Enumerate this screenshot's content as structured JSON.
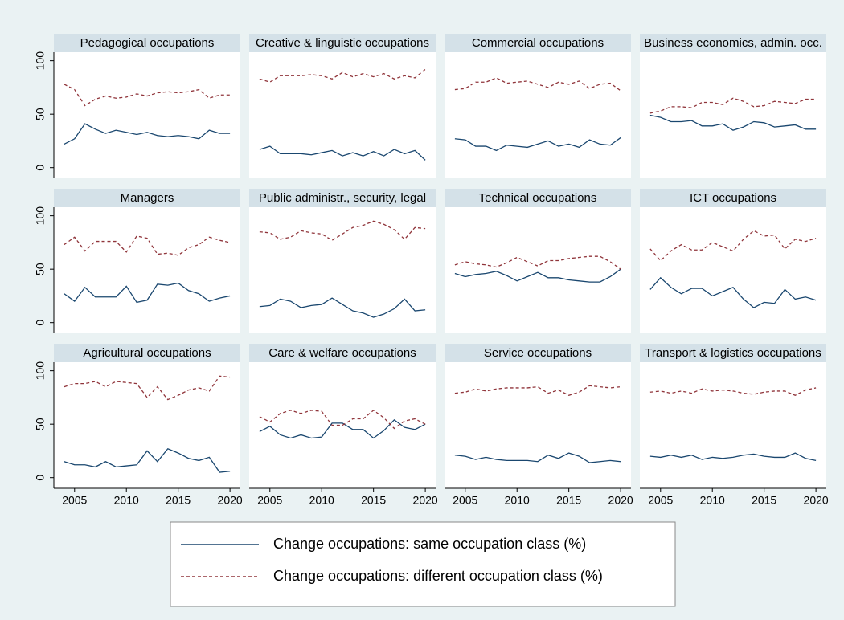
{
  "chart_data": {
    "type": "line",
    "x": [
      2004,
      2005,
      2006,
      2007,
      2008,
      2009,
      2010,
      2011,
      2012,
      2013,
      2014,
      2015,
      2016,
      2017,
      2018,
      2019,
      2020
    ],
    "xlim": [
      2003,
      2021
    ],
    "xticks": [
      2005,
      2010,
      2015,
      2020
    ],
    "ylim": [
      -10,
      108
    ],
    "yticks": [
      0,
      50,
      100
    ],
    "series": [
      {
        "name": "Change occupations: same occupation class (%)",
        "color": "#1a476f",
        "dash": false
      },
      {
        "name": "Change occupations: different occupation class (%)",
        "color": "#90353b",
        "dash": true
      }
    ],
    "panels": [
      {
        "title": "Pedagogical occupations",
        "values": [
          [
            22,
            27,
            41,
            36,
            32,
            35,
            33,
            31,
            33,
            30,
            29,
            30,
            29,
            27,
            35,
            32,
            32
          ],
          [
            78,
            73,
            58,
            64,
            67,
            65,
            66,
            69,
            67,
            70,
            71,
            70,
            71,
            73,
            65,
            68,
            68
          ]
        ]
      },
      {
        "title": "Creative & linguistic occupations",
        "values": [
          [
            17,
            20,
            13,
            13,
            13,
            12,
            14,
            16,
            11,
            14,
            11,
            15,
            11,
            17,
            13,
            16,
            7
          ],
          [
            83,
            80,
            86,
            86,
            86,
            87,
            86,
            83,
            89,
            85,
            88,
            85,
            88,
            83,
            86,
            84,
            92
          ]
        ]
      },
      {
        "title": "Commercial occupations",
        "values": [
          [
            27,
            26,
            20,
            20,
            16,
            21,
            20,
            19,
            22,
            25,
            20,
            22,
            19,
            26,
            22,
            21,
            28
          ],
          [
            73,
            74,
            80,
            80,
            84,
            79,
            80,
            81,
            78,
            75,
            80,
            78,
            81,
            74,
            78,
            79,
            72
          ]
        ]
      },
      {
        "title": "Business economics, admin. occ.",
        "values": [
          [
            49,
            47,
            43,
            43,
            44,
            39,
            39,
            41,
            35,
            38,
            43,
            42,
            38,
            39,
            40,
            36,
            36
          ],
          [
            51,
            53,
            57,
            57,
            56,
            61,
            61,
            59,
            65,
            62,
            57,
            58,
            62,
            61,
            60,
            64,
            64
          ]
        ]
      },
      {
        "title": "Managers",
        "values": [
          [
            27,
            20,
            33,
            24,
            24,
            24,
            34,
            19,
            21,
            36,
            35,
            37,
            30,
            27,
            20,
            23,
            25
          ],
          [
            73,
            80,
            67,
            76,
            76,
            76,
            66,
            81,
            79,
            64,
            65,
            63,
            70,
            73,
            80,
            77,
            75
          ]
        ]
      },
      {
        "title": "Public administr., security, legal",
        "values": [
          [
            15,
            16,
            22,
            20,
            14,
            16,
            17,
            23,
            17,
            11,
            9,
            5,
            8,
            13,
            22,
            11,
            12
          ],
          [
            85,
            84,
            78,
            80,
            86,
            84,
            83,
            77,
            83,
            89,
            91,
            95,
            92,
            87,
            78,
            89,
            88
          ]
        ]
      },
      {
        "title": "Technical occupations",
        "values": [
          [
            46,
            43,
            45,
            46,
            48,
            44,
            39,
            43,
            47,
            42,
            42,
            40,
            39,
            38,
            38,
            43,
            50
          ],
          [
            54,
            57,
            55,
            54,
            52,
            56,
            61,
            57,
            53,
            58,
            58,
            60,
            61,
            62,
            62,
            57,
            50
          ]
        ]
      },
      {
        "title": "ICT occupations",
        "values": [
          [
            31,
            42,
            33,
            27,
            32,
            32,
            25,
            29,
            33,
            22,
            14,
            19,
            18,
            31,
            22,
            24,
            21
          ],
          [
            69,
            58,
            67,
            73,
            68,
            68,
            75,
            71,
            67,
            78,
            86,
            81,
            82,
            69,
            78,
            76,
            79
          ]
        ]
      },
      {
        "title": "Agricultural occupations",
        "values": [
          [
            15,
            12,
            12,
            10,
            15,
            10,
            11,
            12,
            25,
            15,
            27,
            23,
            18,
            16,
            19,
            5,
            6
          ],
          [
            85,
            88,
            88,
            90,
            85,
            90,
            89,
            88,
            75,
            85,
            73,
            77,
            82,
            84,
            81,
            95,
            94
          ]
        ]
      },
      {
        "title": "Care & welfare occupations",
        "values": [
          [
            43,
            48,
            40,
            37,
            40,
            37,
            38,
            51,
            51,
            45,
            45,
            37,
            44,
            54,
            47,
            45,
            50
          ],
          [
            57,
            52,
            60,
            63,
            60,
            63,
            62,
            49,
            49,
            55,
            55,
            63,
            56,
            46,
            53,
            55,
            50
          ]
        ]
      },
      {
        "title": "Service occupations",
        "values": [
          [
            21,
            20,
            17,
            19,
            17,
            16,
            16,
            16,
            15,
            21,
            18,
            23,
            20,
            14,
            15,
            16,
            15
          ],
          [
            79,
            80,
            83,
            81,
            83,
            84,
            84,
            84,
            85,
            79,
            82,
            77,
            80,
            86,
            85,
            84,
            85
          ]
        ]
      },
      {
        "title": "Transport & logistics occupations",
        "values": [
          [
            20,
            19,
            21,
            19,
            21,
            17,
            19,
            18,
            19,
            21,
            22,
            20,
            19,
            19,
            23,
            18,
            16
          ],
          [
            80,
            81,
            79,
            81,
            79,
            83,
            81,
            82,
            81,
            79,
            78,
            80,
            81,
            81,
            77,
            82,
            84
          ]
        ]
      }
    ]
  }
}
